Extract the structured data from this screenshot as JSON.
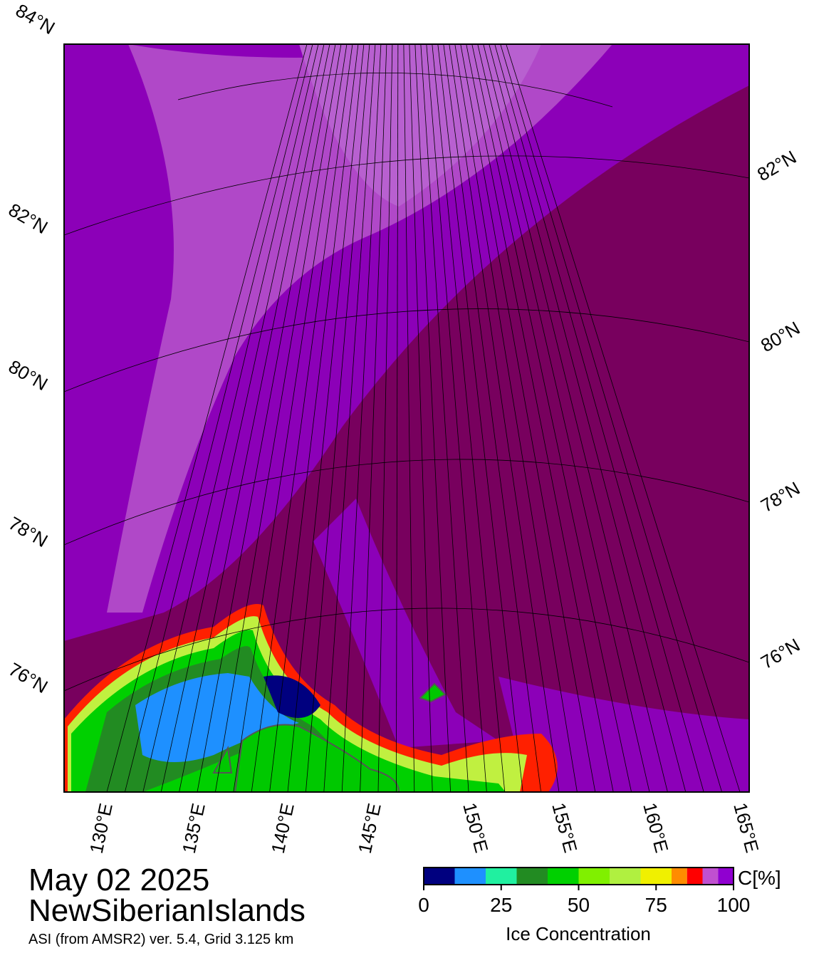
{
  "title": "May 02 2025",
  "region": "NewSiberianIslands",
  "source": "ASI (from AMSR2) ver. 5.4,  Grid 3.125 km",
  "map": {
    "lat_labels_left": [
      "84°N",
      "82°N",
      "80°N",
      "78°N",
      "76°N"
    ],
    "lat_labels_right": [
      "82°N",
      "80°N",
      "78°N",
      "76°N"
    ],
    "lon_labels": [
      "130°E",
      "135°E",
      "140°E",
      "145°E",
      "150°E",
      "155°E",
      "160°E",
      "165°E"
    ]
  },
  "colorbar": {
    "label": "Ice Concentration",
    "unit": "C[%]",
    "lim": [
      0,
      100
    ],
    "ticks": [
      0,
      25,
      50,
      75,
      100
    ],
    "bins": [
      0,
      10,
      20,
      30,
      40,
      50,
      60,
      70,
      80,
      85,
      90,
      95,
      100
    ],
    "colors": [
      "#00007f",
      "#1e90ff",
      "#20f0a0",
      "#228b22",
      "#00d000",
      "#80f000",
      "#b0f040",
      "#f0f000",
      "#ff8c00",
      "#ff0000",
      "#c050d0",
      "#9000d0"
    ]
  }
}
